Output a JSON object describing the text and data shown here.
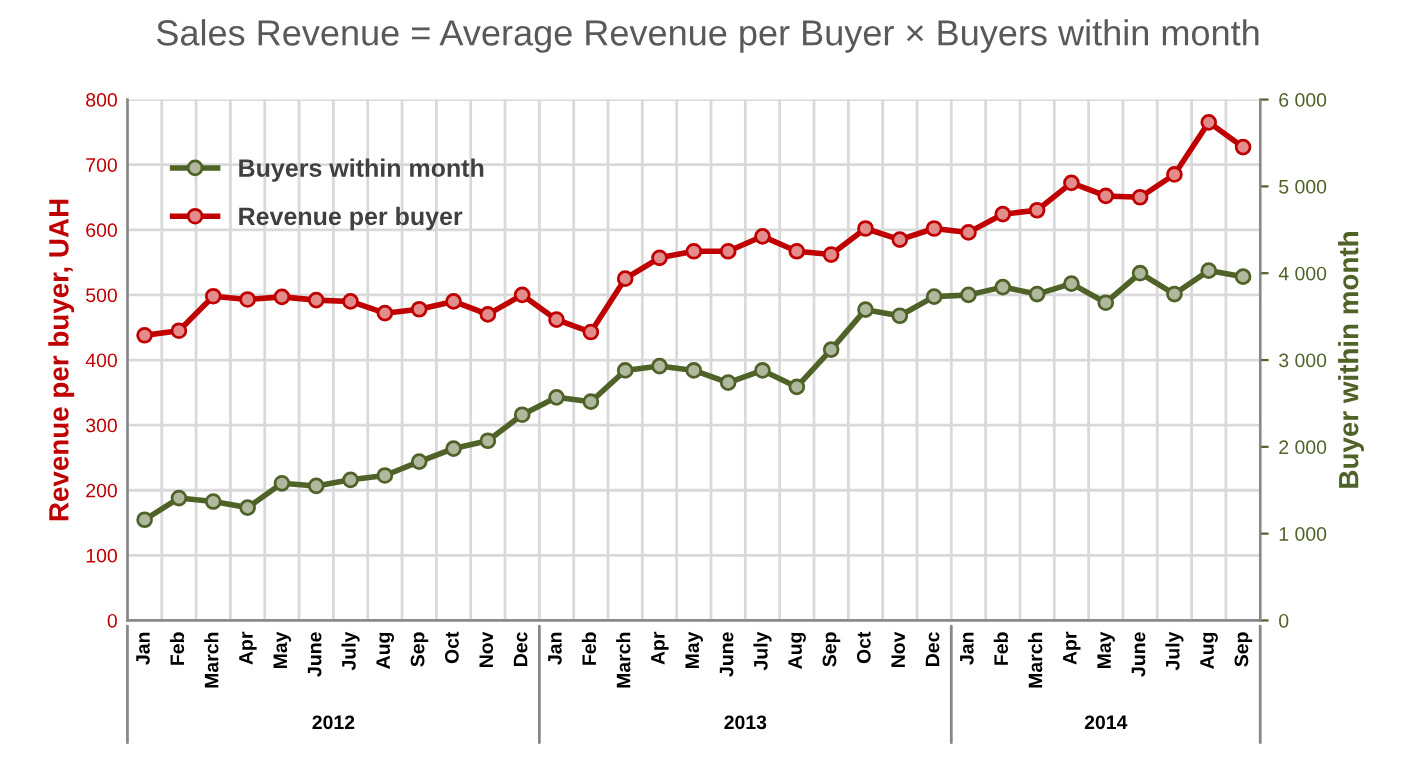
{
  "chart_data": {
    "type": "line",
    "title": "Sales Revenue = Average Revenue per Buyer × Buyers within month",
    "categories": [
      "Jan",
      "Feb",
      "March",
      "Apr",
      "May",
      "June",
      "July",
      "Aug",
      "Sep",
      "Oct",
      "Nov",
      "Dec",
      "Jan",
      "Feb",
      "March",
      "Apr",
      "May",
      "June",
      "July",
      "Aug",
      "Sep",
      "Oct",
      "Nov",
      "Dec",
      "Jan",
      "Feb",
      "March",
      "Apr",
      "May",
      "June",
      "July",
      "Aug",
      "Sep"
    ],
    "series": [
      {
        "name": "Buyers within month",
        "color": "#4f6228",
        "axis": "y2",
        "values": [
          1160,
          1410,
          1370,
          1300,
          1580,
          1550,
          1620,
          1670,
          1830,
          1980,
          2070,
          2370,
          2570,
          2520,
          2880,
          2930,
          2880,
          2740,
          2880,
          2690,
          3120,
          3580,
          3510,
          3730,
          3750,
          3840,
          3760,
          3880,
          3660,
          4000,
          3760,
          4030,
          3960
        ]
      },
      {
        "name": "Revenue per buyer",
        "color": "#c00000",
        "values": [
          438,
          445,
          498,
          493,
          497,
          492,
          490,
          472,
          478,
          490,
          470,
          500,
          462,
          443,
          525,
          557,
          567,
          567,
          590,
          567,
          562,
          602,
          585,
          602,
          596,
          624,
          630,
          672,
          652,
          650,
          685,
          765,
          727
        ]
      }
    ],
    "ylabel": "Revenue per buyer, UAH",
    "y2label": "Buyer within month",
    "ylim": [
      0,
      800
    ],
    "yticks": [
      0,
      100,
      200,
      300,
      400,
      500,
      600,
      700,
      800
    ],
    "y2lim": [
      0,
      6000
    ],
    "y2ticks": [
      0,
      {
        "value": 1000,
        "label": "1 000"
      },
      {
        "value": 2000,
        "label": "2 000"
      },
      {
        "value": 3000,
        "label": "3 000"
      },
      {
        "value": 4000,
        "label": "4 000"
      },
      {
        "value": 5000,
        "label": "5 000"
      },
      {
        "value": 6000,
        "label": "6 000"
      }
    ],
    "annotations": [
      "2012",
      "2013",
      "2014"
    ],
    "grid": true,
    "legend": "top left",
    "marker": "circle",
    "line_style": "solid"
  }
}
